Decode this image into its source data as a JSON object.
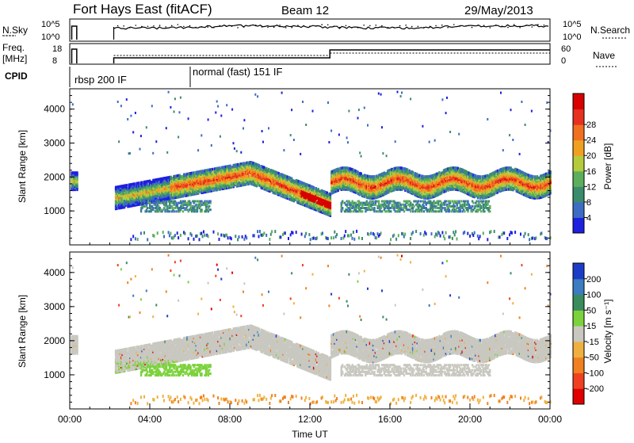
{
  "header": {
    "radar": "Fort Hays East (fitACF)",
    "beam": "Beam 12",
    "date": "29/May/2013"
  },
  "noise_panel": {
    "left_label": "N.Sky",
    "right_label": "N.Search",
    "left_ticks": [
      "10^5",
      "10^0"
    ],
    "right_ticks": [
      "10^5",
      "10^0"
    ]
  },
  "freq_panel": {
    "left_label_1": "Freq.",
    "left_label_2": "[MHz]",
    "left_ticks": [
      "18",
      "8"
    ],
    "right_label": "Nave",
    "right_ticks": [
      "60",
      "0"
    ]
  },
  "cpid": {
    "label": "CPID",
    "segments": [
      {
        "start_hour": 0.9,
        "text": "rbsp 200 IF"
      },
      {
        "start_hour": 6.0,
        "text": "normal (fast) 151 IF"
      }
    ]
  },
  "chart_data": [
    {
      "type": "heatmap",
      "name": "power",
      "ylabel": "Slant Range [km]",
      "xlim": [
        0,
        24
      ],
      "ylim": [
        0,
        4600
      ],
      "y_ticks": [
        "1000",
        "2000",
        "3000",
        "4000"
      ],
      "colorbar": {
        "label": "Power [dB]",
        "ticks": [
          "4",
          "8",
          "12",
          "16",
          "20",
          "24",
          "28"
        ],
        "colors": [
          "#1f1fe0",
          "#3c6cc4",
          "#3a8c6c",
          "#5cae5c",
          "#b4cc3c",
          "#f0a020",
          "#f07020",
          "#e83020",
          "#d80000"
        ]
      },
      "features": [
        {
          "kind": "echo-band",
          "start": 2.2,
          "end": 13.0,
          "center_start": 1350,
          "center_end": 1150,
          "peak_hour": 9.0,
          "peak_center": 2100
        },
        {
          "kind": "echo-band",
          "start": 13.0,
          "end": 24.0,
          "center": 1800,
          "oscillation": 150
        }
      ]
    },
    {
      "type": "heatmap",
      "name": "velocity",
      "ylabel": "Slant Range [km]",
      "xlabel": "Time UT",
      "xlim": [
        0,
        24
      ],
      "ylim": [
        0,
        4600
      ],
      "x_ticks": [
        "00:00",
        "04:00",
        "08:00",
        "12:00",
        "16:00",
        "20:00",
        "00:00"
      ],
      "y_ticks": [
        "1000",
        "2000",
        "3000",
        "4000"
      ],
      "colorbar": {
        "label": "Velocity [m s^-1]",
        "ticks": [
          "200",
          "100",
          "50",
          "15",
          "-15",
          "-50",
          "-100",
          "-200"
        ],
        "colors": [
          "#1c3cc8",
          "#3c7cc0",
          "#3a8c5c",
          "#7cd23c",
          "#c8c8c0",
          "#f0b040",
          "#f08020",
          "#f04020",
          "#e00000"
        ]
      },
      "features": [
        {
          "kind": "ground-scatter",
          "start": 2.2,
          "end": 24.0,
          "center": 1700,
          "color": "#c8c8c0"
        }
      ]
    }
  ]
}
